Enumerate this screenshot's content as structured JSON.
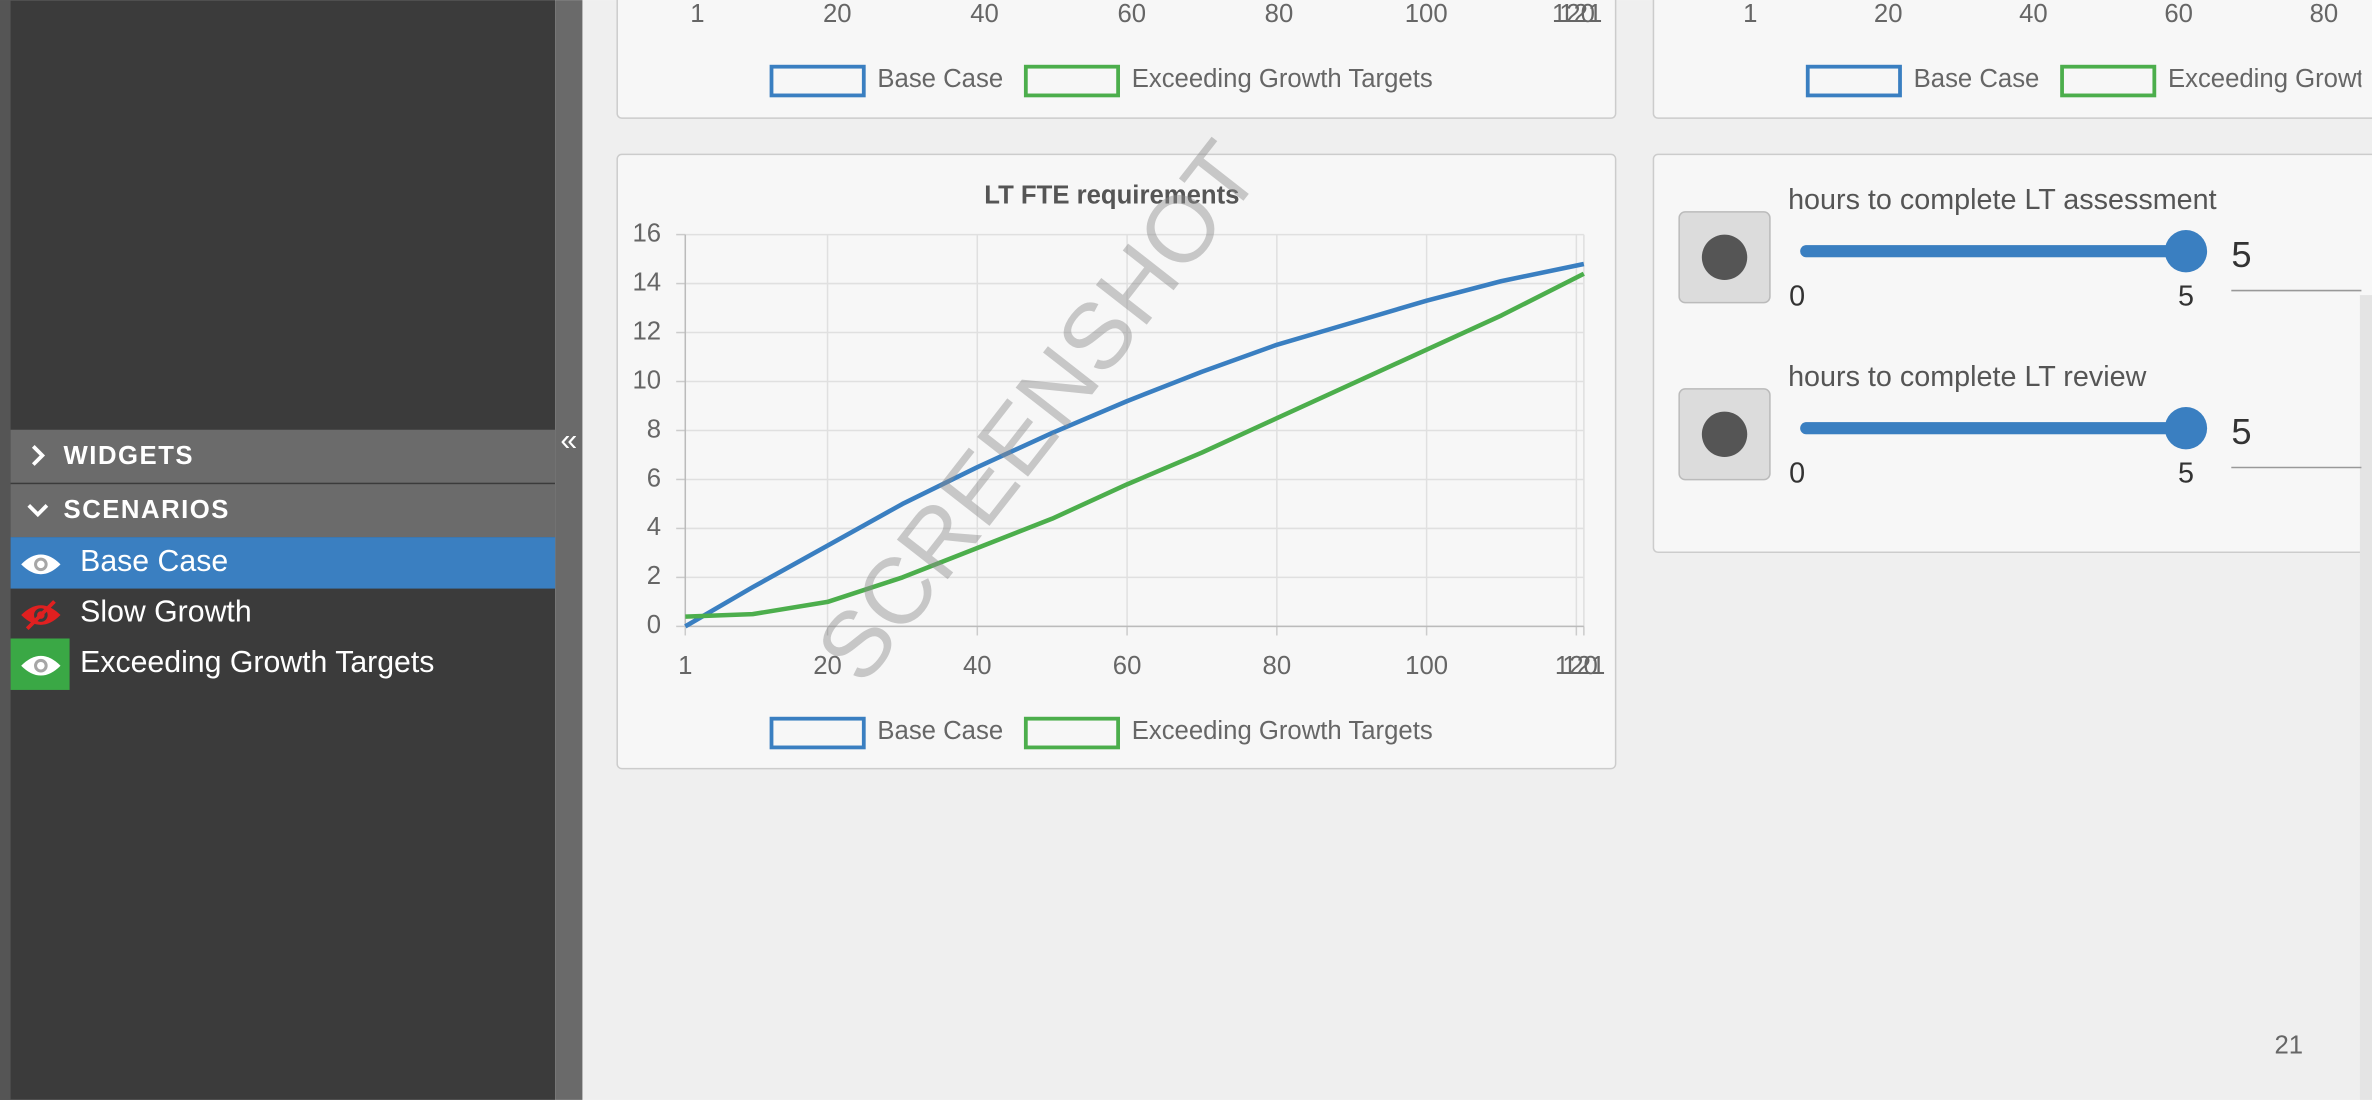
{
  "sidebar": {
    "sections": [
      "WIDGETS",
      "SCENARIOS"
    ],
    "collapse": "«",
    "scenarios": [
      {
        "name": "Base Case",
        "color": "#3a7fc1",
        "visible": true,
        "selected": true
      },
      {
        "name": "Slow Growth",
        "color": "#e02020",
        "visible": false,
        "selected": false
      },
      {
        "name": "Exceeding Growth Targets",
        "color": "#3aa845",
        "visible": true,
        "selected": false
      }
    ]
  },
  "top_charts": [
    {
      "xlim": [
        1,
        121
      ],
      "xticks": [
        1,
        20,
        40,
        60,
        80,
        100,
        120,
        121
      ],
      "legend": [
        "Base Case",
        "Exceeding Growth Targets"
      ]
    },
    {
      "xlim": [
        1,
        121
      ],
      "xticks": [
        1,
        20,
        40,
        60,
        80
      ],
      "legend": [
        "Base Case",
        "Exceeding Growth Targets"
      ]
    }
  ],
  "lt_chart": {
    "type": "line",
    "title": "LT FTE requirements",
    "x": [
      1,
      10,
      20,
      30,
      40,
      50,
      60,
      70,
      80,
      90,
      100,
      110,
      121
    ],
    "xlim": [
      1,
      121
    ],
    "xticks": [
      1,
      20,
      40,
      60,
      80,
      100,
      120,
      121
    ],
    "ylim": [
      0,
      16
    ],
    "yticks": [
      0,
      2,
      4,
      6,
      8,
      10,
      12,
      14,
      16
    ],
    "grid": true,
    "series": [
      {
        "name": "Base Case",
        "color": "#3a7fc1",
        "values": [
          0,
          1.6,
          3.3,
          5,
          6.5,
          7.9,
          9.2,
          10.4,
          11.5,
          12.4,
          13.3,
          14.1,
          14.8
        ]
      },
      {
        "name": "Exceeding Growth Targets",
        "color": "#4cae4c",
        "values": [
          0.4,
          0.5,
          1.0,
          2.0,
          3.2,
          4.4,
          5.8,
          7.1,
          8.5,
          9.9,
          11.3,
          12.7,
          14.4
        ]
      }
    ]
  },
  "sliders": [
    {
      "label": "hours to complete LT assessment",
      "min": 0,
      "max": 5,
      "value": 5
    },
    {
      "label": "hours to complete LT review",
      "min": 0,
      "max": 5,
      "value": 5
    }
  ],
  "watermark": "SCREENSHOT",
  "page_number": "21"
}
